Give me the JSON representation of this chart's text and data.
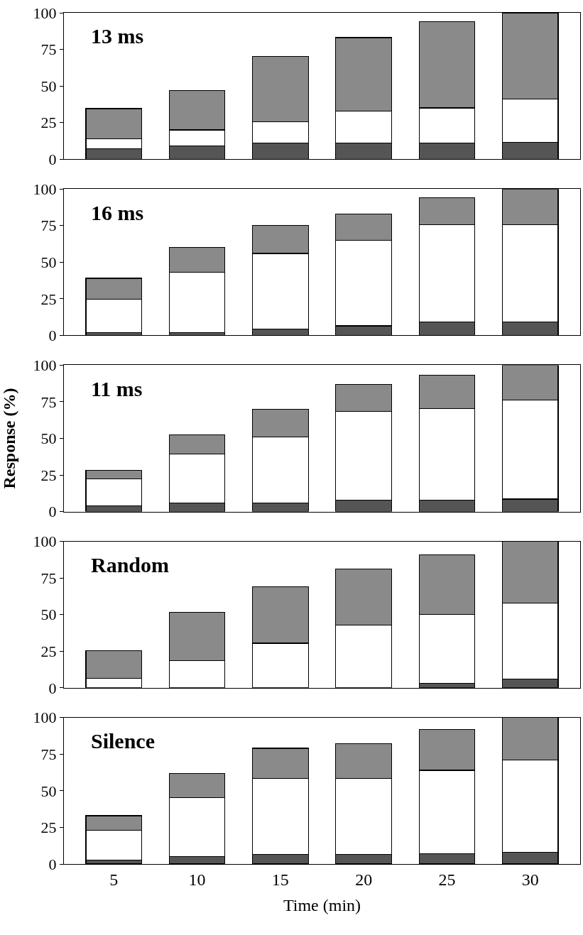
{
  "chart_data": [
    {
      "type": "bar",
      "title": "13 ms",
      "stacked": true,
      "tick_labels": "y",
      "categories": [
        "5",
        "10",
        "15",
        "20",
        "25",
        "30"
      ],
      "ylim": [
        0,
        100
      ],
      "yticks": [
        0,
        25,
        50,
        75,
        100
      ],
      "series": [
        {
          "color": "#555555",
          "values": [
            7,
            9,
            11,
            11,
            11,
            11.5
          ]
        },
        {
          "color": "#ffffff",
          "values": [
            7,
            11,
            14.5,
            22,
            24,
            29.5
          ]
        },
        {
          "color": "#8a8a8a",
          "values": [
            20.5,
            27,
            44.5,
            50,
            59,
            59
          ]
        }
      ]
    },
    {
      "type": "bar",
      "title": "16 ms",
      "stacked": true,
      "tick_labels": "y",
      "categories": [
        "5",
        "10",
        "15",
        "20",
        "25",
        "30"
      ],
      "ylim": [
        0,
        100
      ],
      "yticks": [
        0,
        25,
        50,
        75,
        100
      ],
      "series": [
        {
          "color": "#555555",
          "values": [
            2,
            2,
            4.5,
            6.5,
            9,
            9
          ]
        },
        {
          "color": "#ffffff",
          "values": [
            22.5,
            41,
            51.5,
            58.5,
            66.5,
            66.5
          ]
        },
        {
          "color": "#8a8a8a",
          "values": [
            14.5,
            17,
            19,
            18,
            18.5,
            24.5
          ]
        }
      ]
    },
    {
      "type": "bar",
      "title": "11 ms",
      "ylabel": "Response (%)",
      "stacked": true,
      "tick_labels": "y",
      "categories": [
        "5",
        "10",
        "15",
        "20",
        "25",
        "30"
      ],
      "ylim": [
        0,
        100
      ],
      "yticks": [
        0,
        25,
        50,
        75,
        100
      ],
      "series": [
        {
          "color": "#555555",
          "values": [
            4,
            6,
            6,
            8,
            8,
            8.5
          ]
        },
        {
          "color": "#ffffff",
          "values": [
            18.5,
            33.5,
            45,
            60.5,
            62.5,
            67.5
          ]
        },
        {
          "color": "#8a8a8a",
          "values": [
            5.5,
            13,
            19,
            18.5,
            22.5,
            24
          ]
        }
      ]
    },
    {
      "type": "bar",
      "title": "Random",
      "stacked": true,
      "tick_labels": "y",
      "categories": [
        "5",
        "10",
        "15",
        "20",
        "25",
        "30"
      ],
      "ylim": [
        0,
        100
      ],
      "yticks": [
        0,
        25,
        50,
        75,
        100
      ],
      "series": [
        {
          "color": "#555555",
          "values": [
            0,
            0,
            0,
            0,
            3,
            6
          ]
        },
        {
          "color": "#ffffff",
          "values": [
            6.5,
            18.5,
            30.5,
            43,
            47,
            52
          ]
        },
        {
          "color": "#8a8a8a",
          "values": [
            19,
            33,
            38.5,
            38,
            41,
            42
          ]
        }
      ]
    },
    {
      "type": "bar",
      "title": "Silence",
      "xlabel": "Time (min)",
      "stacked": true,
      "categories": [
        "5",
        "10",
        "15",
        "20",
        "25",
        "30"
      ],
      "ylim": [
        0,
        100
      ],
      "yticks": [
        0,
        25,
        50,
        75,
        100
      ],
      "series": [
        {
          "color": "#555555",
          "values": [
            2.5,
            5,
            6.5,
            6.5,
            7,
            8
          ]
        },
        {
          "color": "#ffffff",
          "values": [
            20.5,
            40.5,
            52,
            52,
            57,
            63
          ]
        },
        {
          "color": "#8a8a8a",
          "values": [
            10,
            16.5,
            20.5,
            23.5,
            28,
            29
          ]
        }
      ]
    }
  ]
}
